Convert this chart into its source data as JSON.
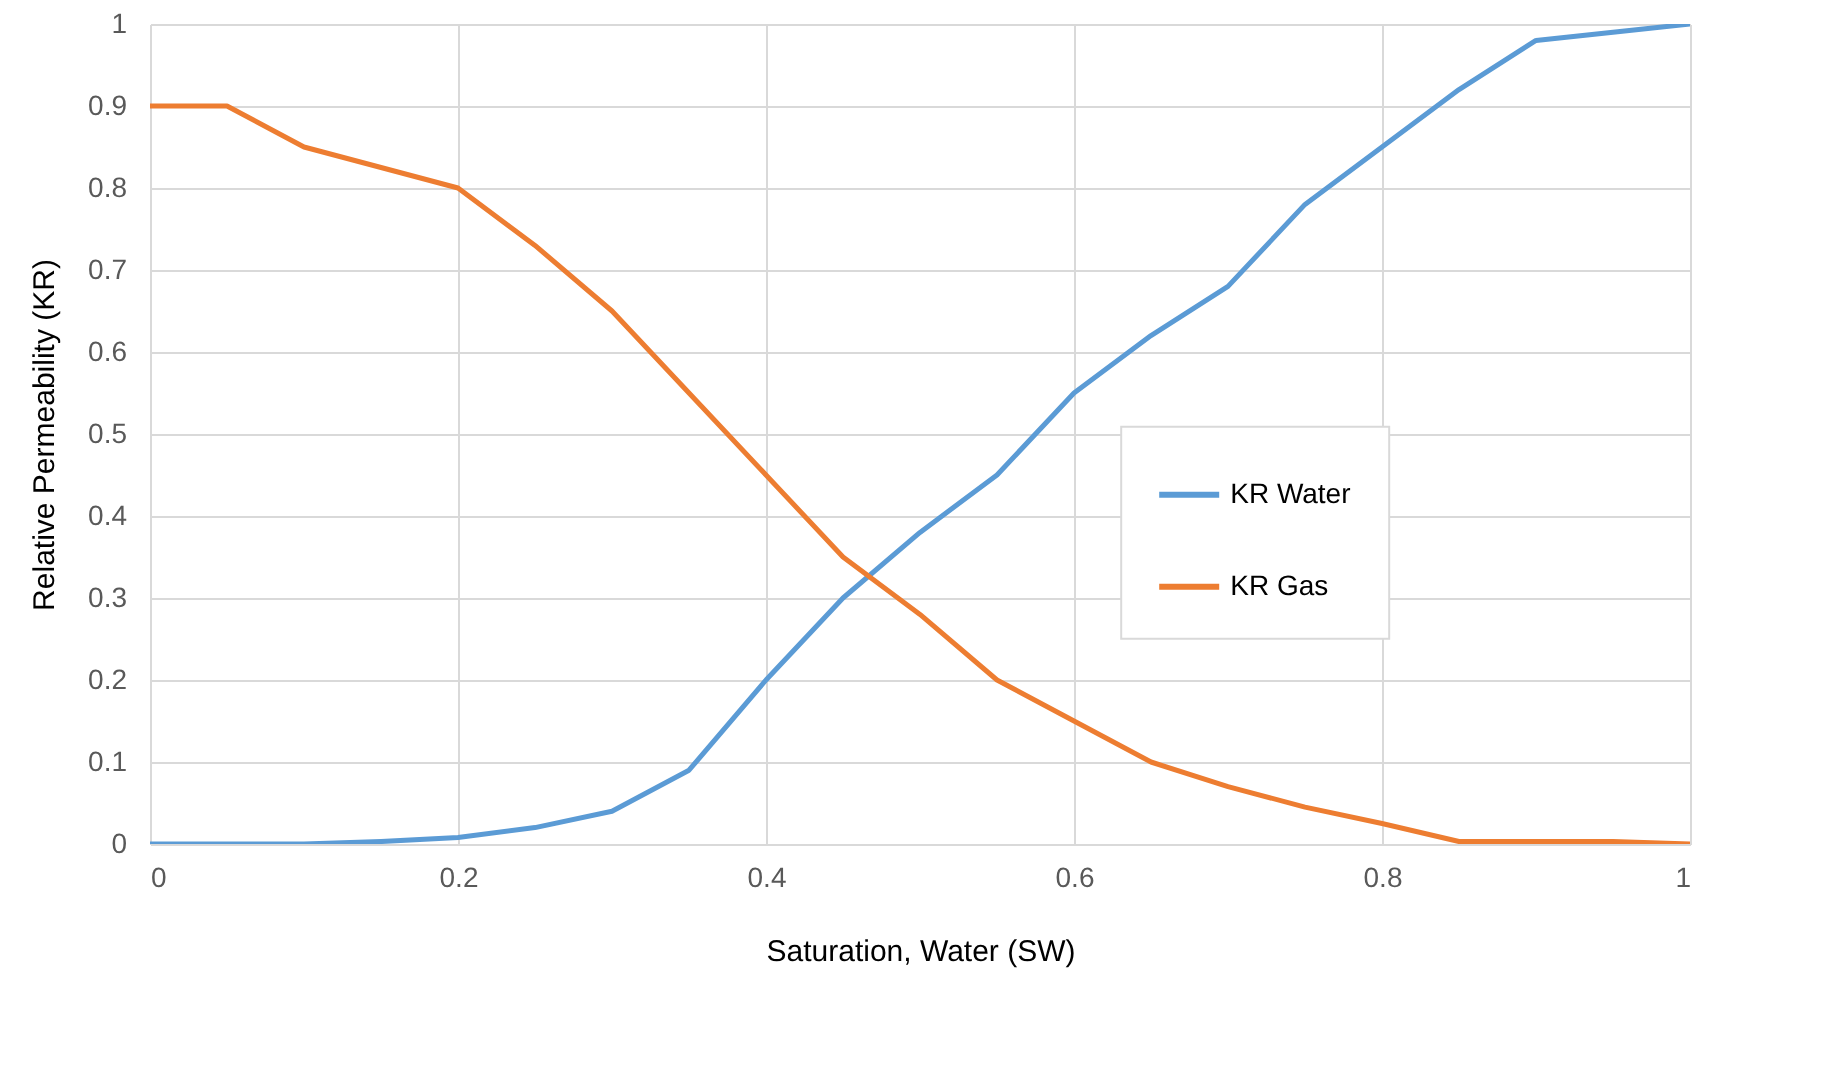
{
  "chart_data": {
    "type": "line",
    "xlabel": "Saturation, Water (SW)",
    "ylabel": "Relative Permeability (KR)",
    "x": [
      0,
      0.05,
      0.1,
      0.15,
      0.2,
      0.25,
      0.3,
      0.35,
      0.4,
      0.45,
      0.5,
      0.55,
      0.6,
      0.65,
      0.7,
      0.75,
      0.8,
      0.85,
      0.9,
      0.95,
      1
    ],
    "series": [
      {
        "name": "KR Water",
        "color": "#5b9bd5",
        "values": [
          0,
          0,
          0,
          0.003,
          0.008,
          0.02,
          0.04,
          0.09,
          0.2,
          0.3,
          0.38,
          0.45,
          0.55,
          0.62,
          0.68,
          0.78,
          0.85,
          0.92,
          0.98,
          0.99,
          1
        ]
      },
      {
        "name": "KR Gas",
        "color": "#ed7d31",
        "values": [
          0.9,
          0.9,
          0.85,
          0.825,
          0.8,
          0.73,
          0.65,
          0.55,
          0.45,
          0.35,
          0.28,
          0.2,
          0.15,
          0.1,
          0.07,
          0.045,
          0.025,
          0.003,
          0.003,
          0.003,
          0
        ]
      }
    ],
    "xlim": [
      0,
      1
    ],
    "xticks": [
      0,
      0.2,
      0.4,
      0.6,
      0.8,
      1
    ],
    "ylim": [
      0,
      1
    ],
    "yticks": [
      0,
      0.1,
      0.2,
      0.3,
      0.4,
      0.5,
      0.6,
      0.7,
      0.8,
      0.9,
      1
    ],
    "grid": true,
    "legend": "right",
    "line_style": "solid"
  }
}
